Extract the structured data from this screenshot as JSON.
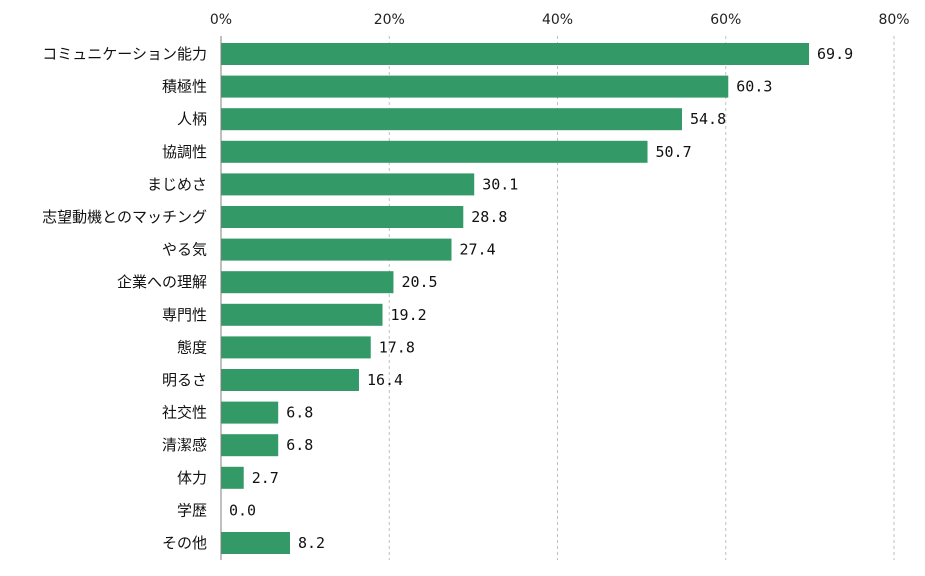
{
  "chart_data": {
    "type": "bar",
    "orientation": "horizontal",
    "categories": [
      "コミュニケーション能力",
      "積極性",
      "人柄",
      "協調性",
      "まじめさ",
      "志望動機とのマッチング",
      "やる気",
      "企業への理解",
      "専門性",
      "態度",
      "明るさ",
      "社交性",
      "清潔感",
      "体力",
      "学歴",
      "その他"
    ],
    "values": [
      69.9,
      60.3,
      54.8,
      50.7,
      30.1,
      28.8,
      27.4,
      20.5,
      19.2,
      17.8,
      16.4,
      6.8,
      6.8,
      2.7,
      0.0,
      8.2
    ],
    "data_labels": [
      "69.9",
      "60.3",
      "54.8",
      "50.7",
      "30.1",
      "28.8",
      "27.4",
      "20.5",
      "19.2",
      "17.8",
      "16.4",
      "6.8",
      "6.8",
      "2.7",
      "0.0",
      "8.2"
    ],
    "xlim": [
      0,
      80
    ],
    "x_ticks": [
      0,
      20,
      40,
      60,
      80
    ],
    "x_tick_labels": [
      "0%",
      "20%",
      "40%",
      "60%",
      "80%"
    ],
    "x_axis_position": "top",
    "grid": "vertical dashed",
    "legend": "none",
    "colors": {
      "bar": "#339966",
      "grid": "#bfbfbf",
      "axis": "#808080"
    }
  }
}
